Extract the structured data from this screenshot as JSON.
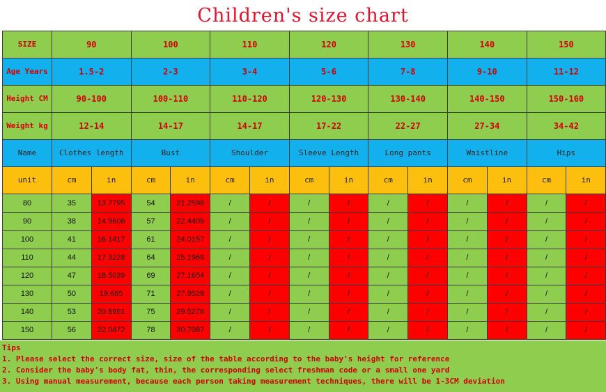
{
  "title": "Children's size chart",
  "size_label": "SIZE",
  "sizes": [
    "90",
    "100",
    "110",
    "120",
    "130",
    "140",
    "150"
  ],
  "age_label": "Age Years",
  "ages": [
    "1.5-2",
    "2-3",
    "3-4",
    "5-6",
    "7-8",
    "9-10",
    "11-12"
  ],
  "height_label": "Height CM",
  "heights": [
    "90-100",
    "100-110",
    "110-120",
    "120-130",
    "130-140",
    "140-150",
    "150-160"
  ],
  "weight_label": "Weight kg",
  "weights": [
    "12-14",
    "14-17",
    "14-17",
    "17-22",
    "22-27",
    "27-34",
    "34-42"
  ],
  "name_label": "Name",
  "measures": [
    "Clothes length",
    "Bust",
    "Shoulder",
    "Sleeve Length",
    "Long pants",
    "Waistline",
    "Hips"
  ],
  "unit_label": "unit",
  "cm": "cm",
  "in": "in",
  "rows": [
    {
      "size": "80",
      "cl_cm": "35",
      "cl_in": "13.7795",
      "bust_cm": "54",
      "bust_in": "21.2598"
    },
    {
      "size": "90",
      "cl_cm": "38",
      "cl_in": "14.9606",
      "bust_cm": "57",
      "bust_in": "22.4409"
    },
    {
      "size": "100",
      "cl_cm": "41",
      "cl_in": "16.1417",
      "bust_cm": "61",
      "bust_in": "24.0157"
    },
    {
      "size": "110",
      "cl_cm": "44",
      "cl_in": "17.3228",
      "bust_cm": "64",
      "bust_in": "25.1969"
    },
    {
      "size": "120",
      "cl_cm": "47",
      "cl_in": "18.5039",
      "bust_cm": "69",
      "bust_in": "27.1654"
    },
    {
      "size": "130",
      "cl_cm": "50",
      "cl_in": "19.685",
      "bust_cm": "71",
      "bust_in": "27.9528"
    },
    {
      "size": "140",
      "cl_cm": "53",
      "cl_in": "20.8661",
      "bust_cm": "75",
      "bust_in": "29.5276"
    },
    {
      "size": "150",
      "cl_cm": "56",
      "cl_in": "22.0472",
      "bust_cm": "78",
      "bust_in": "30.7087"
    }
  ],
  "empty": "/",
  "tips": [
    "Tips",
    "1. Please select the correct size, size of the table according to the baby's height for reference",
    "2. Consider the baby's body fat, thin, the corresponding select freshman code or a small one yard",
    "3. Using manual measurement, because each person taking measurement techniques, there will be 1-3CM deviation"
  ],
  "colors": {
    "green": "#8fcd4f",
    "blue": "#12b0ec",
    "orange": "#fdbf0e",
    "red": "#fe0000",
    "text_red": "#d40000"
  }
}
